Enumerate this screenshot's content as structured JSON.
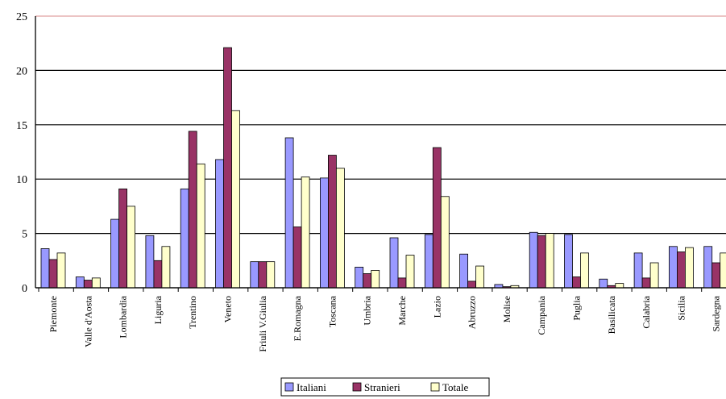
{
  "chart_data": {
    "type": "bar",
    "title": "",
    "xlabel": "",
    "ylabel": "",
    "ylim": [
      0,
      25
    ],
    "yticks": [
      0,
      5,
      10,
      15,
      20,
      25
    ],
    "grid": true,
    "legend_position": "bottom",
    "categories": [
      "Piemonte",
      "Valle d'Aosta",
      "Lombardia",
      "Liguria",
      "Trentino",
      "Veneto",
      "Friuli V.Giulia",
      "E.Romagna",
      "Toscana",
      "Umbria",
      "Marche",
      "Lazio",
      "Abruzzo",
      "Molise",
      "Campania",
      "Puglia",
      "Basilicata",
      "Calabria",
      "Sicilia",
      "Sardegna"
    ],
    "series": [
      {
        "name": "Italiani",
        "color": "#9999ff",
        "values": [
          3.6,
          1.0,
          6.3,
          4.8,
          9.1,
          11.8,
          2.4,
          13.8,
          10.1,
          1.9,
          4.6,
          4.9,
          3.1,
          0.3,
          5.1,
          4.9,
          0.8,
          3.2,
          3.8,
          3.8
        ]
      },
      {
        "name": "Stranieri",
        "color": "#993366",
        "values": [
          2.6,
          0.7,
          9.1,
          2.5,
          14.4,
          22.1,
          2.4,
          5.6,
          12.2,
          1.3,
          0.9,
          12.9,
          0.6,
          0.1,
          4.8,
          1.0,
          0.2,
          0.9,
          3.3,
          2.3
        ]
      },
      {
        "name": "Totale",
        "color": "#ffffcc",
        "values": [
          3.2,
          0.9,
          7.5,
          3.8,
          11.4,
          16.3,
          2.4,
          10.2,
          11.0,
          1.6,
          3.0,
          8.4,
          2.0,
          0.2,
          5.0,
          3.2,
          0.4,
          2.3,
          3.7,
          3.2
        ]
      }
    ]
  }
}
